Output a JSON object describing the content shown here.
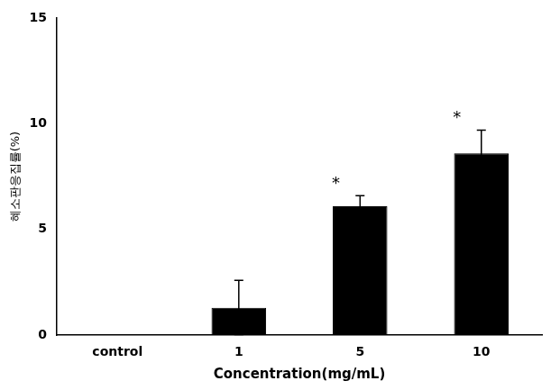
{
  "chart_data": {
    "type": "bar",
    "categories": [
      "control",
      "1",
      "5",
      "10"
    ],
    "values": [
      0.0,
      1.3,
      6.1,
      8.6
    ],
    "errors": [
      0.0,
      1.3,
      0.5,
      1.1
    ],
    "color": "#000000",
    "xlabel": "Concentration(mg/mL)",
    "ylabel": "혜소판응집률(%)",
    "ylim": [
      0,
      15
    ],
    "yticks": [
      0,
      5,
      10,
      15
    ],
    "annotations": [
      {
        "text": "*",
        "x": "5"
      },
      {
        "text": "*",
        "x": "10"
      }
    ],
    "grid": false,
    "legend": false
  }
}
